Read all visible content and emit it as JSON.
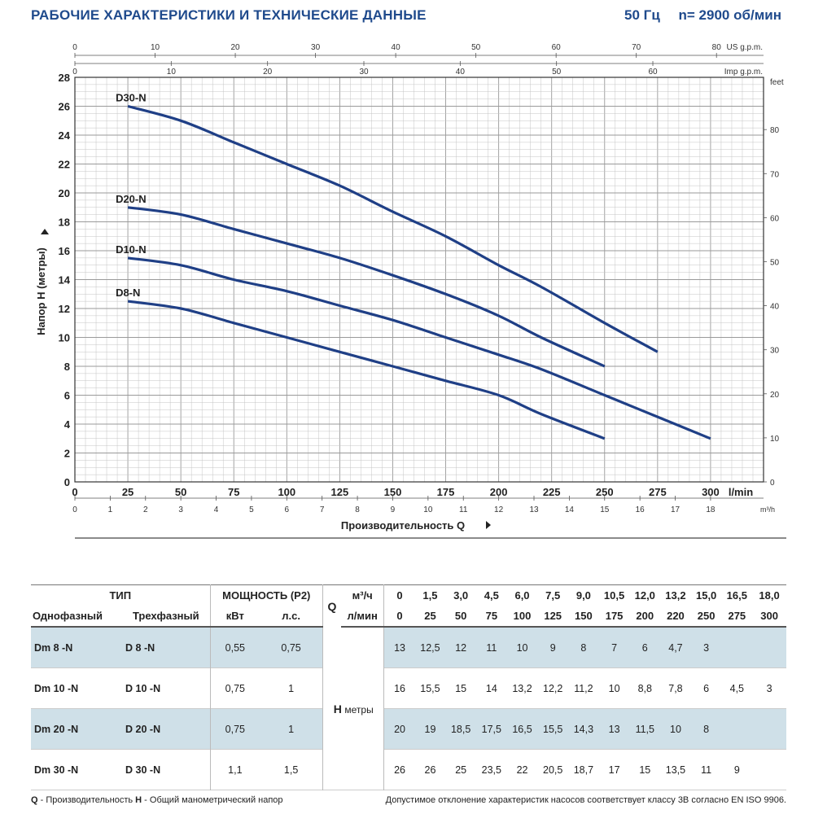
{
  "header": {
    "title": "РАБОЧИЕ ХАРАКТЕРИСТИКИ И ТЕХНИЧЕСКИЕ ДАННЫЕ",
    "freq": "50 Гц",
    "speed": "n= 2900 об/мин"
  },
  "chart_data": {
    "type": "line",
    "ylabel": "Напор H (метры)",
    "xlabel": "Производительность Q",
    "x_unit": "l/min",
    "y_unit": "",
    "xlim": [
      0,
      325
    ],
    "ylim": [
      0,
      28
    ],
    "x_ticks": [
      0,
      25,
      50,
      75,
      100,
      125,
      150,
      175,
      200,
      225,
      250,
      275,
      300
    ],
    "y_ticks": [
      0,
      2,
      4,
      6,
      8,
      10,
      12,
      14,
      16,
      18,
      20,
      22,
      24,
      26,
      28
    ],
    "grid": true,
    "axes_secondary": {
      "us_gpm": {
        "label": "US g.p.m.",
        "ticks": [
          0,
          10,
          20,
          30,
          40,
          50,
          60,
          70,
          80
        ]
      },
      "imp_gpm": {
        "label": "Imp g.p.m.",
        "ticks": [
          0,
          10,
          20,
          30,
          40,
          50,
          60
        ]
      },
      "feet": {
        "label": "feet",
        "ticks": [
          0,
          10,
          20,
          30,
          40,
          50,
          60,
          70,
          80
        ]
      },
      "m3h": {
        "label": "m³/h",
        "ticks": [
          0,
          1,
          2,
          3,
          4,
          5,
          6,
          7,
          8,
          9,
          10,
          11,
          12,
          13,
          14,
          15,
          16,
          17,
          18
        ]
      }
    },
    "series": [
      {
        "name": "D30-N",
        "x": [
          25,
          50,
          75,
          100,
          125,
          150,
          175,
          200,
          220,
          250,
          275
        ],
        "y": [
          26,
          25,
          23.5,
          22,
          20.5,
          18.7,
          17,
          15,
          13.5,
          11,
          9
        ]
      },
      {
        "name": "D20-N",
        "x": [
          25,
          50,
          75,
          100,
          125,
          150,
          175,
          200,
          220,
          250
        ],
        "y": [
          19,
          18.5,
          17.5,
          16.5,
          15.5,
          14.3,
          13,
          11.5,
          10,
          8
        ]
      },
      {
        "name": "D10-N",
        "x": [
          25,
          50,
          75,
          100,
          125,
          150,
          175,
          200,
          220,
          250,
          275,
          300
        ],
        "y": [
          15.5,
          15,
          14,
          13.2,
          12.2,
          11.2,
          10,
          8.8,
          7.8,
          6,
          4.5,
          3
        ]
      },
      {
        "name": "D8-N",
        "x": [
          25,
          50,
          75,
          100,
          125,
          150,
          175,
          200,
          220,
          250
        ],
        "y": [
          12.5,
          12,
          11,
          10,
          9,
          8,
          7,
          6,
          4.7,
          3
        ]
      }
    ],
    "colors": {
      "curve": "#1f3f86",
      "grid": "#c4c4c4",
      "label": "#1f4a8c"
    }
  },
  "table": {
    "header": {
      "type": "ТИП",
      "single": "Однофазный",
      "three": "Трехфазный",
      "power": "МОЩНОСТЬ (P2)",
      "kw": "кВт",
      "hp": "л.с.",
      "q": "Q",
      "q_m3h_unit": "м³/ч",
      "q_lmin_unit": "л/мин",
      "q_m3h": [
        "0",
        "1,5",
        "3,0",
        "4,5",
        "6,0",
        "7,5",
        "9,0",
        "10,5",
        "12,0",
        "13,2",
        "15,0",
        "16,5",
        "18,0"
      ],
      "q_lmin": [
        "0",
        "25",
        "50",
        "75",
        "100",
        "125",
        "150",
        "175",
        "200",
        "220",
        "250",
        "275",
        "300"
      ],
      "h": "H",
      "h_unit": "метры"
    },
    "rows": [
      {
        "single": "Dm 8   -N",
        "three": "D 8   -N",
        "kw": "0,55",
        "hp": "0,75",
        "h": [
          "13",
          "12,5",
          "12",
          "11",
          "10",
          "9",
          "8",
          "7",
          "6",
          "4,7",
          "3",
          "",
          ""
        ]
      },
      {
        "single": "Dm 10 -N",
        "three": "D 10 -N",
        "kw": "0,75",
        "hp": "1",
        "h": [
          "16",
          "15,5",
          "15",
          "14",
          "13,2",
          "12,2",
          "11,2",
          "10",
          "8,8",
          "7,8",
          "6",
          "4,5",
          "3"
        ]
      },
      {
        "single": "Dm 20 -N",
        "three": "D 20 -N",
        "kw": "0,75",
        "hp": "1",
        "h": [
          "20",
          "19",
          "18,5",
          "17,5",
          "16,5",
          "15,5",
          "14,3",
          "13",
          "11,5",
          "10",
          "8",
          "",
          ""
        ]
      },
      {
        "single": "Dm 30 -N",
        "three": "D 30 -N",
        "kw": "1,1",
        "hp": "1,5",
        "h": [
          "26",
          "26",
          "25",
          "23,5",
          "22",
          "20,5",
          "18,7",
          "17",
          "15",
          "13,5",
          "11",
          "9",
          ""
        ]
      }
    ]
  },
  "footer": {
    "q_key": "Q",
    "q_def": " - Производительность  ",
    "h_key": "H",
    "h_def": " - Общий манометрический напор",
    "note": "Допустимое отклонение характеристик насосов соответствует классу 3В согласно EN ISO 9906."
  }
}
